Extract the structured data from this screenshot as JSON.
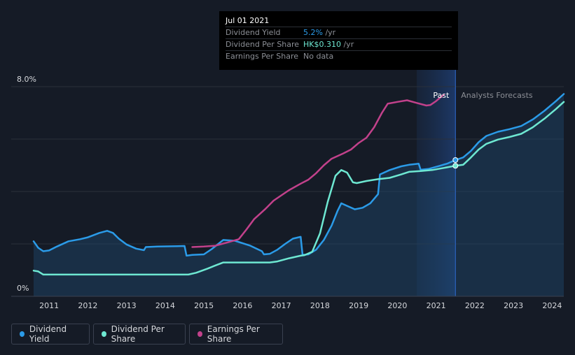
{
  "chart_data": {
    "type": "line",
    "x_range": [
      2010.6,
      2024.3
    ],
    "y_range": [
      0,
      8
    ],
    "y_ticks": [
      {
        "v": 8,
        "label": "8.0%"
      },
      {
        "v": 0,
        "label": "0%"
      }
    ],
    "x_ticks": [
      "2011",
      "2012",
      "2013",
      "2014",
      "2015",
      "2016",
      "2017",
      "2018",
      "2019",
      "2020",
      "2021",
      "2022",
      "2023",
      "2024"
    ],
    "past_label": "Past",
    "forecast_label": "Analysts Forecasts",
    "past_split_x": 2021.5,
    "highlight_start_x": 2020.5,
    "series": [
      {
        "name": "Dividend Yield",
        "color": "#2b9be8",
        "fill": true,
        "points": [
          [
            2010.6,
            2.1
          ],
          [
            2010.72,
            1.85
          ],
          [
            2010.85,
            1.72
          ],
          [
            2011.0,
            1.75
          ],
          [
            2011.2,
            1.9
          ],
          [
            2011.5,
            2.1
          ],
          [
            2011.8,
            2.18
          ],
          [
            2012.0,
            2.25
          ],
          [
            2012.3,
            2.42
          ],
          [
            2012.5,
            2.5
          ],
          [
            2012.65,
            2.42
          ],
          [
            2012.8,
            2.2
          ],
          [
            2013.0,
            1.98
          ],
          [
            2013.25,
            1.82
          ],
          [
            2013.45,
            1.76
          ],
          [
            2013.5,
            1.88
          ],
          [
            2013.8,
            1.9
          ],
          [
            2014.2,
            1.91
          ],
          [
            2014.5,
            1.92
          ],
          [
            2014.55,
            1.55
          ],
          [
            2014.7,
            1.58
          ],
          [
            2015.0,
            1.6
          ],
          [
            2015.2,
            1.8
          ],
          [
            2015.5,
            2.15
          ],
          [
            2015.8,
            2.12
          ],
          [
            2016.2,
            1.93
          ],
          [
            2016.5,
            1.72
          ],
          [
            2016.55,
            1.6
          ],
          [
            2016.7,
            1.62
          ],
          [
            2016.9,
            1.78
          ],
          [
            2017.1,
            2.0
          ],
          [
            2017.3,
            2.2
          ],
          [
            2017.5,
            2.27
          ],
          [
            2017.55,
            1.58
          ],
          [
            2017.7,
            1.6
          ],
          [
            2017.9,
            1.78
          ],
          [
            2018.1,
            2.15
          ],
          [
            2018.3,
            2.7
          ],
          [
            2018.45,
            3.25
          ],
          [
            2018.55,
            3.55
          ],
          [
            2018.7,
            3.45
          ],
          [
            2018.9,
            3.32
          ],
          [
            2019.1,
            3.38
          ],
          [
            2019.3,
            3.55
          ],
          [
            2019.5,
            3.9
          ],
          [
            2019.55,
            4.65
          ],
          [
            2019.8,
            4.82
          ],
          [
            2020.1,
            4.96
          ],
          [
            2020.3,
            5.02
          ],
          [
            2020.55,
            5.06
          ],
          [
            2020.6,
            4.83
          ],
          [
            2020.8,
            4.86
          ],
          [
            2021.1,
            4.98
          ],
          [
            2021.3,
            5.07
          ],
          [
            2021.5,
            5.2
          ],
          [
            2021.7,
            5.3
          ],
          [
            2021.9,
            5.55
          ],
          [
            2022.1,
            5.88
          ],
          [
            2022.3,
            6.12
          ],
          [
            2022.6,
            6.28
          ],
          [
            2022.9,
            6.38
          ],
          [
            2023.2,
            6.5
          ],
          [
            2023.5,
            6.75
          ],
          [
            2023.8,
            7.08
          ],
          [
            2024.1,
            7.45
          ],
          [
            2024.3,
            7.72
          ]
        ]
      },
      {
        "name": "Dividend Per Share",
        "color": "#6ee8d2",
        "fill": false,
        "points": [
          [
            2010.6,
            0.98
          ],
          [
            2010.72,
            0.95
          ],
          [
            2010.85,
            0.83
          ],
          [
            2014.6,
            0.83
          ],
          [
            2014.8,
            0.9
          ],
          [
            2015.1,
            1.06
          ],
          [
            2015.3,
            1.18
          ],
          [
            2015.5,
            1.29
          ],
          [
            2016.0,
            1.29
          ],
          [
            2016.7,
            1.29
          ],
          [
            2016.9,
            1.33
          ],
          [
            2017.2,
            1.45
          ],
          [
            2017.5,
            1.55
          ],
          [
            2017.6,
            1.57
          ],
          [
            2017.8,
            1.7
          ],
          [
            2018.0,
            2.4
          ],
          [
            2018.2,
            3.6
          ],
          [
            2018.4,
            4.6
          ],
          [
            2018.55,
            4.82
          ],
          [
            2018.7,
            4.72
          ],
          [
            2018.85,
            4.35
          ],
          [
            2018.95,
            4.32
          ],
          [
            2019.2,
            4.4
          ],
          [
            2019.5,
            4.47
          ],
          [
            2019.8,
            4.52
          ],
          [
            2020.1,
            4.65
          ],
          [
            2020.3,
            4.75
          ],
          [
            2020.6,
            4.78
          ],
          [
            2020.9,
            4.82
          ],
          [
            2021.2,
            4.9
          ],
          [
            2021.5,
            4.98
          ],
          [
            2021.7,
            5.02
          ],
          [
            2021.9,
            5.3
          ],
          [
            2022.1,
            5.6
          ],
          [
            2022.3,
            5.82
          ],
          [
            2022.6,
            5.98
          ],
          [
            2022.9,
            6.08
          ],
          [
            2023.2,
            6.2
          ],
          [
            2023.5,
            6.45
          ],
          [
            2023.8,
            6.78
          ],
          [
            2024.1,
            7.15
          ],
          [
            2024.3,
            7.42
          ]
        ]
      },
      {
        "name": "Earnings Per Share",
        "color": "#c2418b",
        "fill": false,
        "points": [
          [
            2014.7,
            1.88
          ],
          [
            2015.0,
            1.9
          ],
          [
            2015.3,
            1.93
          ],
          [
            2015.6,
            2.05
          ],
          [
            2015.9,
            2.18
          ],
          [
            2016.1,
            2.55
          ],
          [
            2016.3,
            2.95
          ],
          [
            2016.6,
            3.35
          ],
          [
            2016.8,
            3.65
          ],
          [
            2017.0,
            3.85
          ],
          [
            2017.2,
            4.05
          ],
          [
            2017.5,
            4.3
          ],
          [
            2017.7,
            4.45
          ],
          [
            2017.9,
            4.7
          ],
          [
            2018.1,
            5.0
          ],
          [
            2018.3,
            5.25
          ],
          [
            2018.6,
            5.45
          ],
          [
            2018.8,
            5.6
          ],
          [
            2019.0,
            5.85
          ],
          [
            2019.2,
            6.05
          ],
          [
            2019.4,
            6.45
          ],
          [
            2019.6,
            7.0
          ],
          [
            2019.75,
            7.35
          ],
          [
            2020.0,
            7.42
          ],
          [
            2020.25,
            7.48
          ],
          [
            2020.5,
            7.38
          ],
          [
            2020.75,
            7.28
          ],
          [
            2020.85,
            7.3
          ],
          [
            2021.0,
            7.45
          ],
          [
            2021.2,
            7.7
          ]
        ]
      }
    ]
  },
  "tooltip": {
    "date": "Jul 01 2021",
    "rows": [
      {
        "label": "Dividend Yield",
        "value": "5.2%",
        "unit": " /yr",
        "color": "#2b9be8"
      },
      {
        "label": "Dividend Per Share",
        "value": "HK$0.310",
        "unit": " /yr",
        "color": "#6ee8d2"
      },
      {
        "label": "Earnings Per Share",
        "value": "No data",
        "unit": "",
        "color": "#8c8f96"
      }
    ],
    "marker_x": 2021.5
  },
  "legend": [
    {
      "label": "Dividend Yield",
      "color": "#2b9be8"
    },
    {
      "label": "Dividend Per Share",
      "color": "#6ee8d2"
    },
    {
      "label": "Earnings Per Share",
      "color": "#c2418b"
    }
  ]
}
